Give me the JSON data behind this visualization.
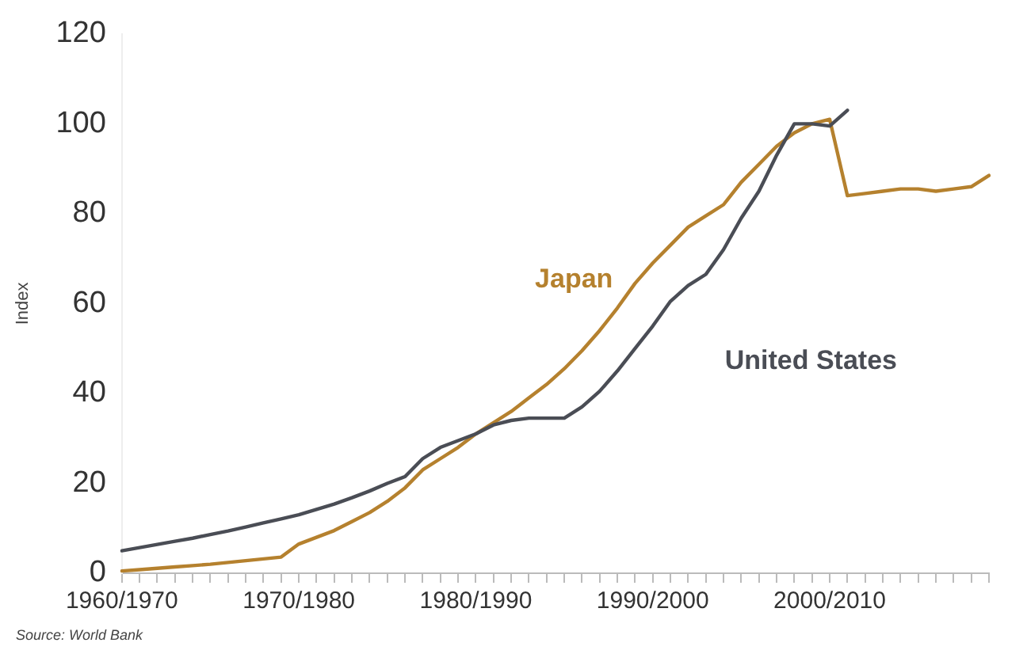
{
  "chart_data": {
    "type": "line",
    "ylabel": "Index",
    "categories": [
      "1960/1970",
      null,
      null,
      null,
      null,
      null,
      null,
      null,
      null,
      null,
      "1970/1980",
      null,
      null,
      null,
      null,
      null,
      null,
      null,
      null,
      null,
      "1980/1990",
      null,
      null,
      null,
      null,
      null,
      null,
      null,
      null,
      null,
      "1990/2000",
      null,
      null,
      null,
      null,
      null,
      null,
      null,
      null,
      null,
      "2000/2010",
      null,
      null,
      null,
      null,
      null,
      null,
      null,
      null,
      null
    ],
    "series": [
      {
        "name": "United States",
        "color": "#4a4d55",
        "values": [
          5,
          5.7,
          6.4,
          7.1,
          7.8,
          8.6,
          9.4,
          10.3,
          11.2,
          12.1,
          13,
          14.2,
          15.4,
          16.8,
          18.3,
          20,
          21.5,
          25.5,
          28,
          29.5,
          31,
          33,
          34,
          34.5,
          34.5,
          34.5,
          37,
          40.5,
          45,
          50,
          55,
          60.5,
          64,
          66.5,
          72,
          79,
          85,
          93,
          100,
          100,
          99.5,
          103,
          null,
          null,
          null,
          null,
          null,
          null,
          null,
          null
        ]
      },
      {
        "name": "Japan",
        "color": "#b5812e",
        "values": [
          0.5,
          0.8,
          1.1,
          1.4,
          1.7,
          2,
          2.4,
          2.8,
          3.2,
          3.6,
          6.5,
          8,
          9.5,
          11.5,
          13.5,
          16,
          19,
          23,
          25.5,
          28,
          31,
          33.5,
          36,
          39,
          42,
          45.5,
          49.5,
          54,
          59,
          64.5,
          69,
          73,
          77,
          79.5,
          82,
          87,
          91,
          95,
          98,
          100,
          101,
          84,
          84.5,
          85,
          85.5,
          85.5,
          85,
          85.5,
          86,
          88.5
        ]
      }
    ],
    "ylim": [
      0,
      120
    ],
    "yticks": [
      0,
      20,
      40,
      60,
      80,
      100,
      120
    ],
    "grid": false,
    "legend": false,
    "marker": "none",
    "line_style": "solid",
    "annotations": [
      "Source: World Bank"
    ]
  }
}
